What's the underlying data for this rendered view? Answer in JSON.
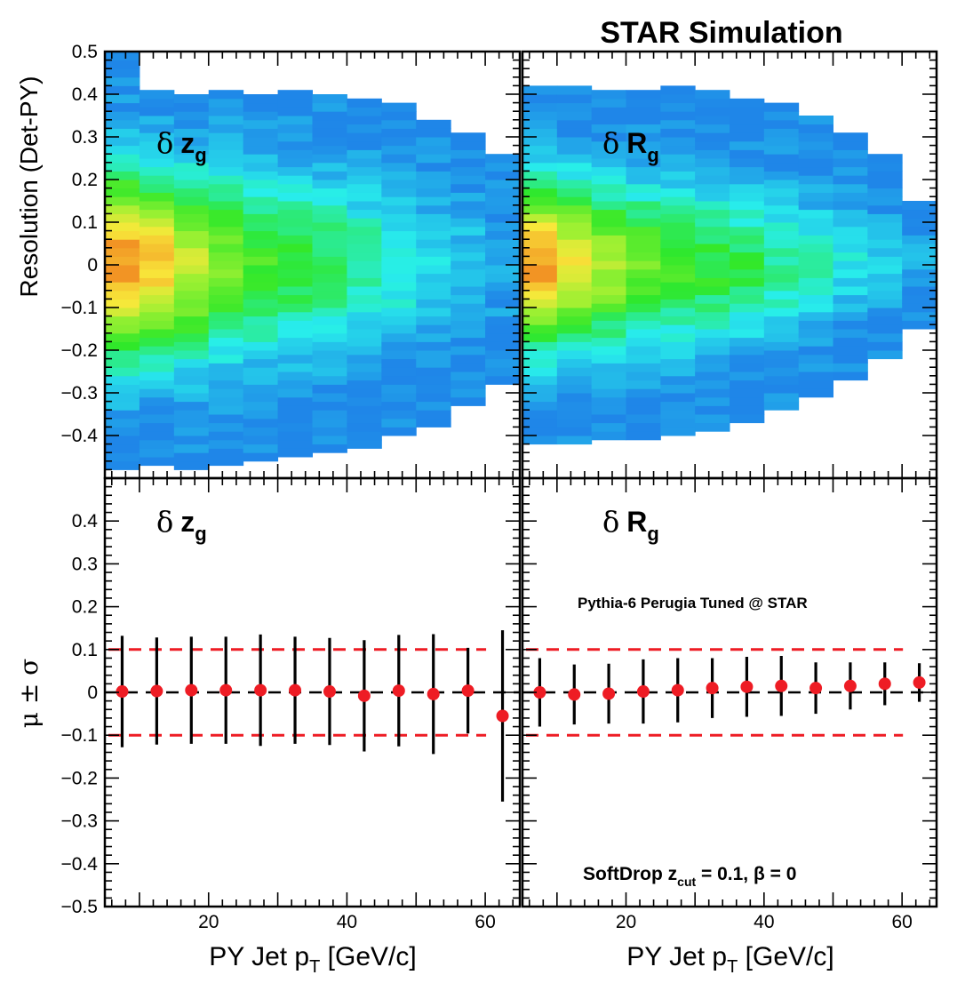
{
  "header": {
    "title": "STAR Simulation"
  },
  "labels": {
    "top_ylabel": "Resolution (Det-PY)",
    "bottom_ylabel": "μ ± σ",
    "xlabel_main": "PY Jet p",
    "xlabel_sub": "T",
    "xlabel_tail": " [GeV/c]",
    "zg_delta": "δ",
    "zg_var": "z",
    "zg_sub": "g",
    "rg_delta": "δ",
    "rg_var": "R",
    "rg_sub": "g",
    "generator": "Pythia-6 Perugia Tuned @ STAR",
    "softdrop_main": "SoftDrop z",
    "softdrop_sub": "cut",
    "softdrop_tail": " = 0.1,  β = 0"
  },
  "colors": {
    "marker": "#ee1c24",
    "error_bar": "#000000",
    "reference_dashed": "#ee1c24",
    "zero_line": "#000000",
    "heat_low": "#1f86e8",
    "heat_mid": "#2fe82a",
    "heat_high": "#f29424"
  },
  "chart_data": [
    {
      "type": "heatmap",
      "panel": "top-left",
      "label": "δ z_g",
      "x_bin_edges": [
        5,
        10,
        15,
        20,
        25,
        30,
        35,
        40,
        45,
        50,
        55,
        60,
        65
      ],
      "ylim": [
        -0.5,
        0.5
      ],
      "xlim": [
        5,
        65
      ],
      "yticks": [
        "-0.4",
        "-0.3",
        "-0.2",
        "-0.1",
        "0",
        "0.1",
        "0.2",
        "0.3",
        "0.4",
        "0.5"
      ],
      "y_extent_per_bin": [
        [
          -0.48,
          0.49
        ],
        [
          -0.47,
          0.4
        ],
        [
          -0.48,
          0.4
        ],
        [
          -0.47,
          0.4
        ],
        [
          -0.46,
          0.4
        ],
        [
          -0.45,
          0.4
        ],
        [
          -0.44,
          0.39
        ],
        [
          -0.43,
          0.39
        ],
        [
          -0.4,
          0.38
        ],
        [
          -0.38,
          0.34
        ],
        [
          -0.33,
          0.3
        ],
        [
          -0.28,
          0.26
        ]
      ],
      "peak_intensity": [
        1.0,
        0.9,
        0.75,
        0.6,
        0.5,
        0.45,
        0.4,
        0.33,
        0.27,
        0.2,
        0.15,
        0.1
      ]
    },
    {
      "type": "heatmap",
      "panel": "top-right",
      "label": "δ R_g",
      "x_bin_edges": [
        5,
        10,
        15,
        20,
        25,
        30,
        35,
        40,
        45,
        50,
        55,
        60,
        65
      ],
      "ylim": [
        -0.5,
        0.5
      ],
      "xlim": [
        5,
        65
      ],
      "y_extent_per_bin": [
        [
          -0.42,
          0.42
        ],
        [
          -0.42,
          0.41
        ],
        [
          -0.41,
          0.41
        ],
        [
          -0.41,
          0.41
        ],
        [
          -0.4,
          0.41
        ],
        [
          -0.39,
          0.4
        ],
        [
          -0.37,
          0.38
        ],
        [
          -0.34,
          0.37
        ],
        [
          -0.31,
          0.34
        ],
        [
          -0.27,
          0.3
        ],
        [
          -0.22,
          0.25
        ],
        [
          -0.15,
          0.15
        ]
      ],
      "peak_intensity": [
        1.0,
        0.85,
        0.7,
        0.58,
        0.5,
        0.45,
        0.4,
        0.33,
        0.27,
        0.2,
        0.15,
        0.1
      ]
    },
    {
      "type": "scatter",
      "panel": "bottom-left",
      "label": "δ z_g",
      "x": [
        7.5,
        12.5,
        17.5,
        22.5,
        27.5,
        32.5,
        37.5,
        42.5,
        47.5,
        52.5,
        57.5,
        62.5
      ],
      "y": [
        0.002,
        0.003,
        0.005,
        0.005,
        0.005,
        0.005,
        0.002,
        -0.008,
        0.004,
        -0.004,
        0.004,
        -0.055
      ],
      "yerr": [
        0.13,
        0.125,
        0.125,
        0.125,
        0.13,
        0.125,
        0.125,
        0.13,
        0.13,
        0.14,
        0.1,
        0.2
      ],
      "xlim": [
        5,
        65
      ],
      "ylim": [
        -0.5,
        0.5
      ],
      "xticks": [
        "20",
        "40",
        "60"
      ],
      "yticks": [
        "-0.5",
        "-0.4",
        "-0.3",
        "-0.2",
        "-0.1",
        "0",
        "0.1",
        "0.2",
        "0.3",
        "0.4"
      ],
      "reference_lines": [
        0.1,
        0,
        -0.1
      ]
    },
    {
      "type": "scatter",
      "panel": "bottom-right",
      "label": "δ R_g",
      "x": [
        7.5,
        12.5,
        17.5,
        22.5,
        27.5,
        32.5,
        37.5,
        42.5,
        47.5,
        52.5,
        57.5,
        62.5
      ],
      "y": [
        0.0,
        -0.005,
        -0.003,
        0.002,
        0.005,
        0.01,
        0.013,
        0.015,
        0.01,
        0.015,
        0.02,
        0.023
      ],
      "yerr": [
        0.08,
        0.07,
        0.07,
        0.075,
        0.075,
        0.07,
        0.07,
        0.07,
        0.06,
        0.055,
        0.05,
        0.045
      ],
      "xlim": [
        5,
        65
      ],
      "ylim": [
        -0.5,
        0.5
      ],
      "xticks": [
        "20",
        "40",
        "60"
      ],
      "reference_lines": [
        0.1,
        0,
        -0.1
      ]
    }
  ]
}
